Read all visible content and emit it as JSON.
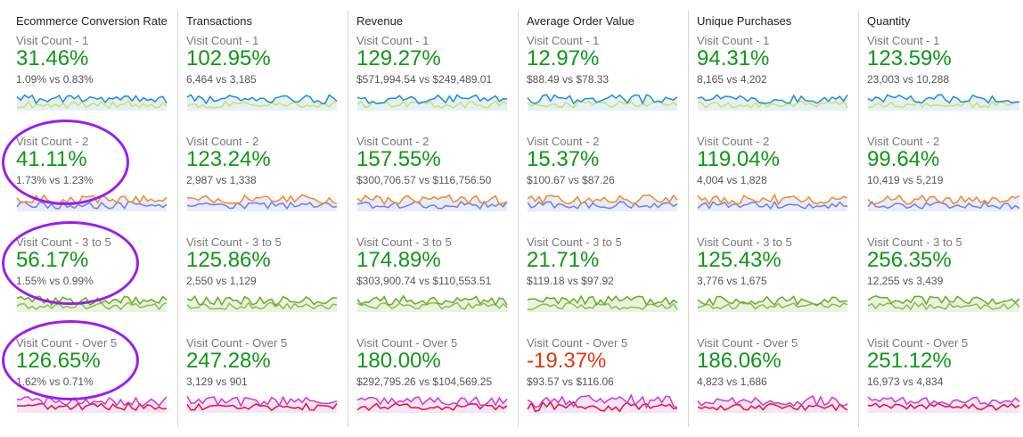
{
  "colors": {
    "positive": "#109618",
    "negative": "#dc3912",
    "highlight": "#9b1fe8",
    "segments": {
      "Visit Count - 1": {
        "primary": "#1f8dd6",
        "compare": "#d4e157",
        "fill": "#e3f1fb"
      },
      "Visit Count - 2": {
        "primary": "#ef8a2b",
        "compare": "#6f7fe5",
        "fill": "#e8ecfb"
      },
      "Visit Count - 3 to 5": {
        "primary": "#66aa22",
        "compare": "#8bbd55",
        "fill": "#e9f3df"
      },
      "Visit Count - Over 5": {
        "primary": "#c43bd6",
        "compare": "#e0132f",
        "fill": "#f6e4f8"
      }
    }
  },
  "columns": [
    {
      "header": "Ecommerce Conversion Rate",
      "rows": [
        {
          "segment": "Visit Count - 1",
          "change": "31.46%",
          "comparison": "1.09% vs 0.83%",
          "direction": "up"
        },
        {
          "segment": "Visit Count - 2",
          "change": "41.11%",
          "comparison": "1.73% vs 1.23%",
          "direction": "up"
        },
        {
          "segment": "Visit Count - 3 to 5",
          "change": "56.17%",
          "comparison": "1.55% vs 0.99%",
          "direction": "up"
        },
        {
          "segment": "Visit Count - Over 5",
          "change": "126.65%",
          "comparison": "1.62% vs 0.71%",
          "direction": "up"
        }
      ]
    },
    {
      "header": "Transactions",
      "rows": [
        {
          "segment": "Visit Count - 1",
          "change": "102.95%",
          "comparison": "6,464 vs 3,185",
          "direction": "up"
        },
        {
          "segment": "Visit Count - 2",
          "change": "123.24%",
          "comparison": "2,987 vs 1,338",
          "direction": "up"
        },
        {
          "segment": "Visit Count - 3 to 5",
          "change": "125.86%",
          "comparison": "2,550 vs 1,129",
          "direction": "up"
        },
        {
          "segment": "Visit Count - Over 5",
          "change": "247.28%",
          "comparison": "3,129 vs 901",
          "direction": "up"
        }
      ]
    },
    {
      "header": "Revenue",
      "rows": [
        {
          "segment": "Visit Count - 1",
          "change": "129.27%",
          "comparison": "$571,994.54 vs $249,489.01",
          "direction": "up"
        },
        {
          "segment": "Visit Count - 2",
          "change": "157.55%",
          "comparison": "$300,706.57 vs $116,756.50",
          "direction": "up"
        },
        {
          "segment": "Visit Count - 3 to 5",
          "change": "174.89%",
          "comparison": "$303,900.74 vs $110,553.51",
          "direction": "up"
        },
        {
          "segment": "Visit Count - Over 5",
          "change": "180.00%",
          "comparison": "$292,795.26 vs $104,569.25",
          "direction": "up"
        }
      ]
    },
    {
      "header": "Average Order Value",
      "rows": [
        {
          "segment": "Visit Count - 1",
          "change": "12.97%",
          "comparison": "$88.49 vs $78.33",
          "direction": "up"
        },
        {
          "segment": "Visit Count - 2",
          "change": "15.37%",
          "comparison": "$100.67 vs $87.26",
          "direction": "up"
        },
        {
          "segment": "Visit Count - 3 to 5",
          "change": "21.71%",
          "comparison": "$119.18 vs $97.92",
          "direction": "up"
        },
        {
          "segment": "Visit Count - Over 5",
          "change": "-19.37%",
          "comparison": "$93.57 vs $116.06",
          "direction": "down"
        }
      ]
    },
    {
      "header": "Unique Purchases",
      "rows": [
        {
          "segment": "Visit Count - 1",
          "change": "94.31%",
          "comparison": "8,165 vs 4,202",
          "direction": "up"
        },
        {
          "segment": "Visit Count - 2",
          "change": "119.04%",
          "comparison": "4,004 vs 1,828",
          "direction": "up"
        },
        {
          "segment": "Visit Count - 3 to 5",
          "change": "125.43%",
          "comparison": "3,776 vs 1,675",
          "direction": "up"
        },
        {
          "segment": "Visit Count - Over 5",
          "change": "186.06%",
          "comparison": "4,823 vs 1,686",
          "direction": "up"
        }
      ]
    },
    {
      "header": "Quantity",
      "rows": [
        {
          "segment": "Visit Count - 1",
          "change": "123.59%",
          "comparison": "23,003 vs 10,288",
          "direction": "up"
        },
        {
          "segment": "Visit Count - 2",
          "change": "99.64%",
          "comparison": "10,419 vs 5,219",
          "direction": "up"
        },
        {
          "segment": "Visit Count - 3 to 5",
          "change": "256.35%",
          "comparison": "12,255 vs 3,439",
          "direction": "up"
        },
        {
          "segment": "Visit Count - Over 5",
          "change": "251.12%",
          "comparison": "16,973 vs 4,834",
          "direction": "up"
        }
      ]
    }
  ]
}
